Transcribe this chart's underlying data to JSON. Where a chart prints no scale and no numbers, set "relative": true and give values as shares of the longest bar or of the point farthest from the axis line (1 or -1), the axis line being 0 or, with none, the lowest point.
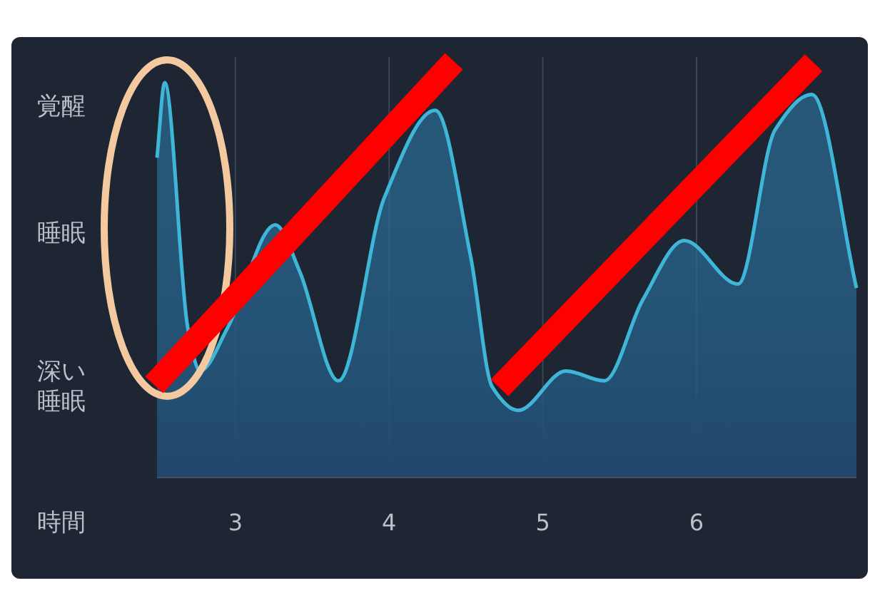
{
  "chart_data": {
    "type": "area",
    "xlabel": "時間",
    "grid": "x",
    "relative": true,
    "xlim": [
      2.49,
      7.04
    ],
    "xticks": [
      3,
      4,
      5,
      6
    ],
    "annotations": [
      "覚醒",
      "睡眠",
      "深い睡眠"
    ],
    "series": [
      {
        "color": "#3fb6d8",
        "x": [
          2.49,
          2.54,
          2.69,
          2.77,
          2.95,
          3.26,
          3.42,
          3.67,
          3.97,
          4.3,
          4.53,
          4.67,
          4.84,
          5.15,
          5.4,
          5.65,
          5.92,
          6.27,
          6.51,
          6.75,
          7.04
        ],
        "values": [
          0.81,
          1.0,
          0.38,
          0.27,
          0.38,
          0.64,
          0.52,
          0.245,
          0.71,
          0.93,
          0.56,
          0.23,
          0.17,
          0.27,
          0.245,
          0.45,
          0.6,
          0.49,
          0.88,
          0.97,
          0.48
        ]
      }
    ]
  }
}
